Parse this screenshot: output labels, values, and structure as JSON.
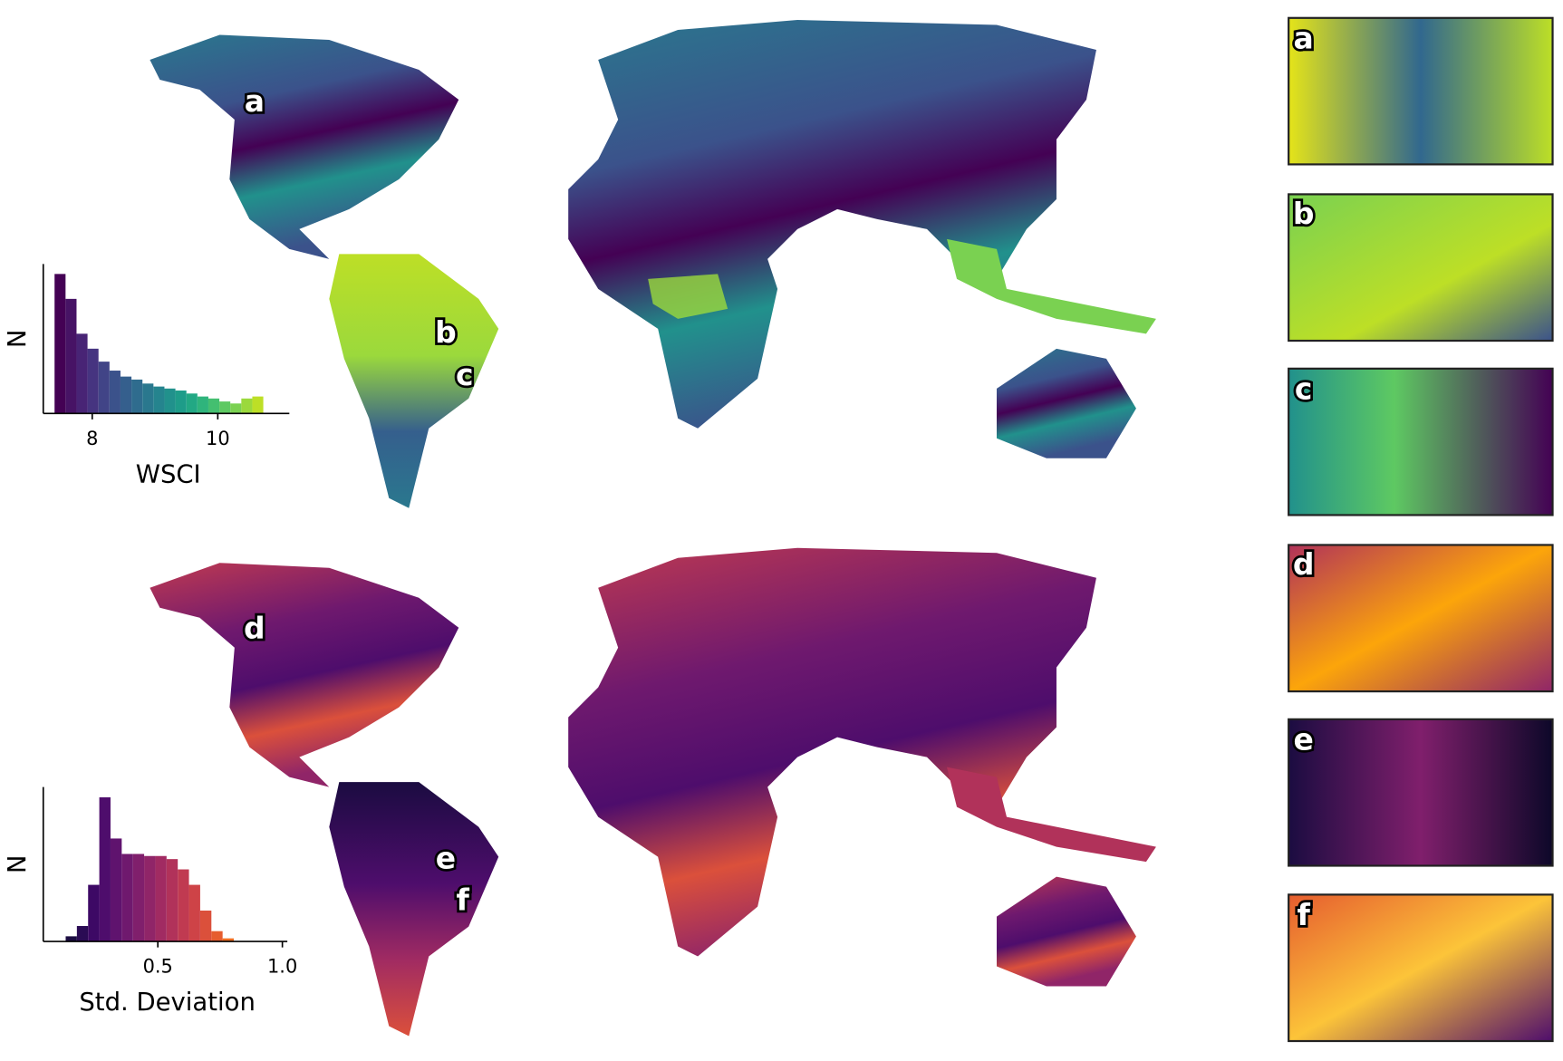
{
  "map_labels": {
    "top": [
      "a",
      "b",
      "c"
    ],
    "bottom": [
      "d",
      "e",
      "f"
    ]
  },
  "insets": [
    "a",
    "b",
    "c",
    "d",
    "e",
    "f"
  ],
  "chart_data": [
    {
      "type": "histogram",
      "xlabel": "WSCI",
      "ylabel": "N",
      "bins": [
        7.4,
        7.575,
        7.75,
        7.925,
        8.1,
        8.275,
        8.45,
        8.625,
        8.8,
        8.975,
        9.15,
        9.325,
        9.5,
        9.675,
        9.85,
        10.025,
        10.2,
        10.375,
        10.55,
        10.725
      ],
      "values": [
        140,
        115,
        80,
        65,
        52,
        43,
        37,
        34,
        30,
        27,
        25,
        23,
        20,
        17,
        15,
        12,
        10,
        15,
        17
      ],
      "colors": [
        "#440154",
        "#471365",
        "#482475",
        "#463480",
        "#414487",
        "#3b528b",
        "#355f8d",
        "#2f6c8e",
        "#2a788e",
        "#25848e",
        "#21918c",
        "#1e9c89",
        "#22a884",
        "#2fb47c",
        "#44bf70",
        "#5ec962",
        "#7ad151",
        "#9bd93c",
        "#bddf26"
      ],
      "xlim": [
        7.22,
        11.14
      ],
      "ylim": [
        0,
        150
      ],
      "xticks": [
        8,
        10
      ]
    },
    {
      "type": "histogram",
      "xlabel": "Std. Deviation",
      "ylabel": "N",
      "bins": [
        0.13,
        0.175,
        0.22,
        0.265,
        0.31,
        0.355,
        0.4,
        0.445,
        0.49,
        0.535,
        0.58,
        0.625,
        0.67,
        0.715,
        0.76,
        0.805
      ],
      "values": [
        5,
        15,
        55,
        140,
        100,
        85,
        85,
        83,
        83,
        80,
        70,
        55,
        30,
        10,
        3
      ],
      "colors": [
        "#1b0c41",
        "#2a0b54",
        "#3d0965",
        "#4e0d6c",
        "#5f136e",
        "#6f196e",
        "#801f6c",
        "#902568",
        "#a12b62",
        "#b1325a",
        "#c03a51",
        "#ce4347",
        "#db503b",
        "#e65d2f",
        "#ef6e21"
      ],
      "xlim": [
        0.04,
        1.02
      ],
      "ylim": [
        0,
        150
      ],
      "xticks": [
        0.5,
        {
          "value": 1,
          "label": "1.0"
        }
      ]
    }
  ]
}
